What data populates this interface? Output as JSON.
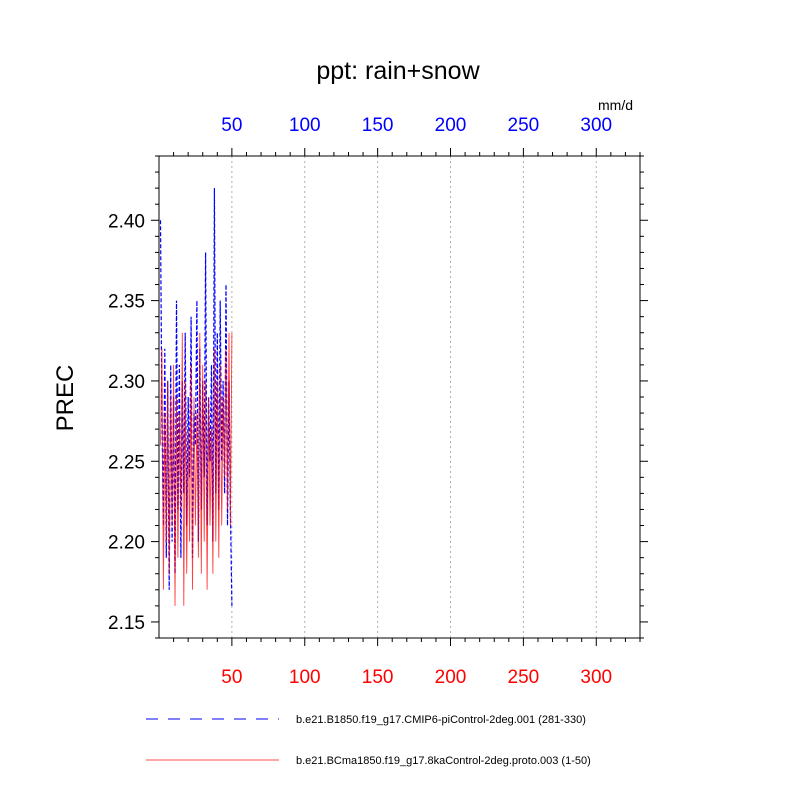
{
  "chart_data": {
    "type": "line",
    "title": "ppt: rain+snow",
    "ylabel": "PREC",
    "units": "mm/d",
    "xlim": [
      0,
      330
    ],
    "ylim": [
      2.14,
      2.44
    ],
    "yticks": [
      2.15,
      2.2,
      2.25,
      2.3,
      2.35,
      2.4
    ],
    "ytick_labels": [
      "2.15",
      "2.20",
      "2.25",
      "2.30",
      "2.35",
      "2.40"
    ],
    "xticks": [
      50,
      100,
      150,
      200,
      250,
      300
    ],
    "xtick_labels": [
      "50",
      "100",
      "150",
      "200",
      "250",
      "300"
    ],
    "top_axis_color": "#0000ff",
    "bottom_axis_color": "#ff0000",
    "grid": "vertical dotted at major x ticks",
    "series": [
      {
        "name": "b.e21.B1850.f19_g17.CMIP6-piControl-2deg.001 (281-330)",
        "color": "#0000ff",
        "dash": "dashed",
        "x": [
          1,
          2,
          3,
          4,
          5,
          6,
          7,
          8,
          9,
          10,
          11,
          12,
          13,
          14,
          15,
          16,
          17,
          18,
          19,
          20,
          21,
          22,
          23,
          24,
          25,
          26,
          27,
          28,
          29,
          30,
          31,
          32,
          33,
          34,
          35,
          36,
          37,
          38,
          39,
          40,
          41,
          42,
          43,
          44,
          45,
          46,
          47,
          48,
          49,
          50
        ],
        "values": [
          2.4,
          2.28,
          2.21,
          2.32,
          2.19,
          2.3,
          2.17,
          2.31,
          2.2,
          2.29,
          2.18,
          2.35,
          2.22,
          2.31,
          2.19,
          2.3,
          2.23,
          2.33,
          2.21,
          2.29,
          2.24,
          2.34,
          2.19,
          2.28,
          2.26,
          2.35,
          2.2,
          2.32,
          2.22,
          2.3,
          2.24,
          2.38,
          2.21,
          2.29,
          2.25,
          2.31,
          2.2,
          2.42,
          2.23,
          2.33,
          2.22,
          2.35,
          2.25,
          2.3,
          2.23,
          2.36,
          2.21,
          2.3,
          2.22,
          2.16
        ]
      },
      {
        "name": "b.e21.BCma1850.f19_g17.8kaControl-2deg.proto.003 (1-50)",
        "color": "#ff0000",
        "dash": "solid",
        "x": [
          1,
          2,
          3,
          4,
          5,
          6,
          7,
          8,
          9,
          10,
          11,
          12,
          13,
          14,
          15,
          16,
          17,
          18,
          19,
          20,
          21,
          22,
          23,
          24,
          25,
          26,
          27,
          28,
          29,
          30,
          31,
          32,
          33,
          34,
          35,
          36,
          37,
          38,
          39,
          40,
          41,
          42,
          43,
          44,
          45,
          46,
          47,
          48,
          49,
          50
        ],
        "values": [
          2.26,
          2.32,
          2.17,
          2.28,
          2.2,
          2.3,
          2.18,
          2.29,
          2.21,
          2.31,
          2.16,
          2.29,
          2.19,
          2.28,
          2.22,
          2.33,
          2.16,
          2.3,
          2.18,
          2.27,
          2.2,
          2.31,
          2.17,
          2.29,
          2.21,
          2.28,
          2.19,
          2.33,
          2.18,
          2.31,
          2.2,
          2.3,
          2.17,
          2.29,
          2.21,
          2.27,
          2.18,
          2.32,
          2.2,
          2.3,
          2.19,
          2.31,
          2.21,
          2.29,
          2.24,
          2.32,
          2.22,
          2.33,
          2.21,
          2.33
        ]
      }
    ]
  }
}
